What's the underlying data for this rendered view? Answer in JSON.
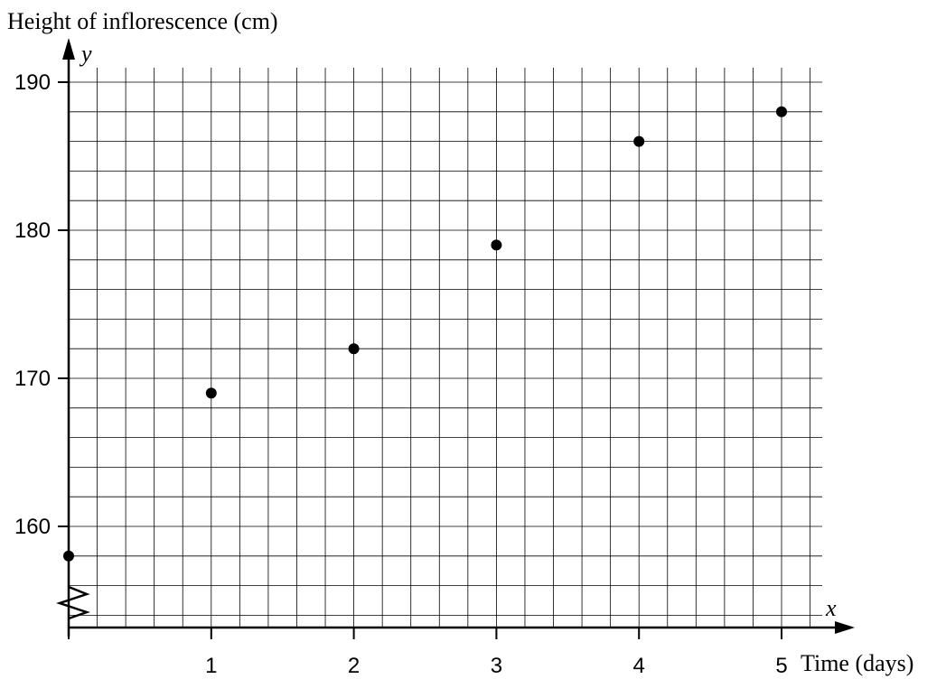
{
  "chart_data": {
    "type": "scatter",
    "ylabel": "Height of inflorescence (cm)",
    "xlabel": "Time (days)",
    "x_axis_letter": "x",
    "y_axis_letter": "y",
    "x_ticks": [
      "1",
      "2",
      "3",
      "4",
      "5"
    ],
    "y_ticks": [
      "160",
      "170",
      "180",
      "190"
    ],
    "xlim": [
      0,
      5.2
    ],
    "ylim": [
      154,
      191
    ],
    "y_axis_break": true,
    "grid": true,
    "points": [
      {
        "x": 0,
        "y": 158
      },
      {
        "x": 1,
        "y": 169
      },
      {
        "x": 2,
        "y": 172
      },
      {
        "x": 3,
        "y": 179
      },
      {
        "x": 4,
        "y": 186
      },
      {
        "x": 5,
        "y": 188
      }
    ],
    "colors": {
      "marker": "#000000",
      "grid": "#000000",
      "axis": "#000000"
    }
  }
}
